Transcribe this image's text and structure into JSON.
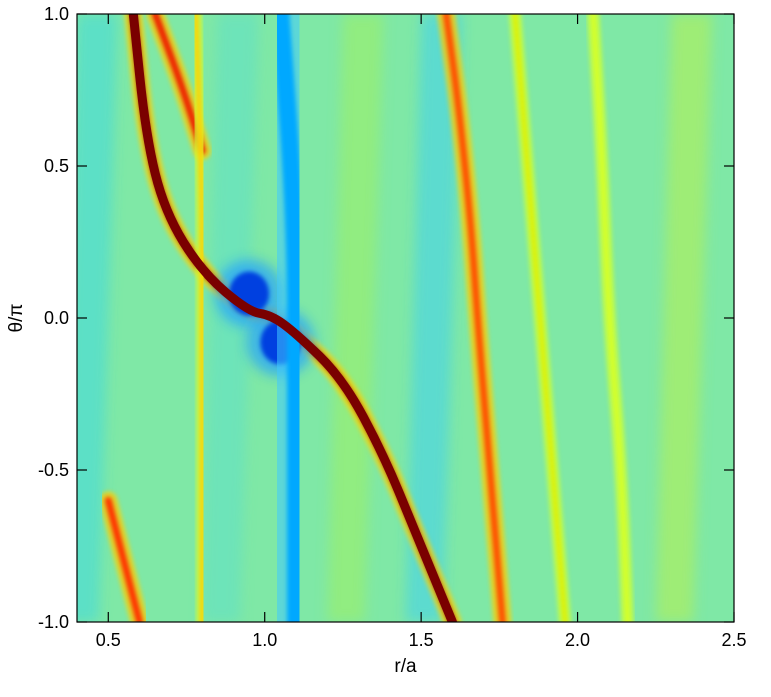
{
  "chart_data": {
    "type": "heatmap",
    "title": "",
    "xlabel": "r/a",
    "ylabel": "θ/π",
    "xlim": [
      0.4,
      2.5
    ],
    "ylim": [
      -1.0,
      1.0
    ],
    "x_ticks": [
      {
        "value": 0.5,
        "label": "0.5"
      },
      {
        "value": 1.0,
        "label": "1.0"
      },
      {
        "value": 1.5,
        "label": "1.5"
      },
      {
        "value": 2.0,
        "label": "2.0"
      },
      {
        "value": 2.5,
        "label": "2.5"
      }
    ],
    "y_ticks": [
      {
        "value": -1.0,
        "label": "-1.0"
      },
      {
        "value": -0.5,
        "label": "-0.5"
      },
      {
        "value": 0.0,
        "label": "0.0"
      },
      {
        "value": 0.5,
        "label": "0.5"
      },
      {
        "value": 1.0,
        "label": "1.0"
      }
    ],
    "colormap": [
      "#00008f",
      "#0000ff",
      "#0080ff",
      "#00ffff",
      "#80ff80",
      "#ffff00",
      "#ff8000",
      "#ff0000",
      "#800000"
    ],
    "background_color": "#7fe8a6",
    "grid": false,
    "legend": "none",
    "features": [
      {
        "name": "primary spiral wake",
        "level": "high",
        "color": "#8b0000",
        "path": [
          [
            0.58,
            1.0
          ],
          [
            0.62,
            0.6
          ],
          [
            0.68,
            0.35
          ],
          [
            0.8,
            0.15
          ],
          [
            0.95,
            0.02
          ],
          [
            1.02,
            0.01
          ],
          [
            1.1,
            -0.05
          ],
          [
            1.25,
            -0.2
          ],
          [
            1.38,
            -0.45
          ],
          [
            1.48,
            -0.7
          ],
          [
            1.6,
            -1.0
          ]
        ]
      },
      {
        "name": "upper outer arm",
        "level": "high",
        "color": "#ee2000",
        "path": [
          [
            0.65,
            1.0
          ],
          [
            0.74,
            0.75
          ],
          [
            0.8,
            0.55
          ]
        ]
      },
      {
        "name": "lower inner arm",
        "level": "high",
        "color": "#ff3000",
        "path": [
          [
            0.5,
            -0.6
          ],
          [
            0.55,
            -0.8
          ],
          [
            0.6,
            -1.0
          ]
        ]
      },
      {
        "name": "leading low-density lobe",
        "level": "low",
        "color": "#0040e0",
        "center": [
          0.95,
          0.08
        ]
      },
      {
        "name": "trailing low-density lobe",
        "level": "low",
        "color": "#0040e0",
        "center": [
          1.05,
          -0.08
        ]
      },
      {
        "name": "corotation gap",
        "level": "low",
        "color": "#00a8ff",
        "path": [
          [
            1.05,
            1.0
          ],
          [
            1.1,
            0.3
          ],
          [
            1.1,
            -0.3
          ],
          [
            1.1,
            -1.0
          ]
        ]
      },
      {
        "name": "outer spiral wave 1",
        "level": "high",
        "color": "#ff5000",
        "path": [
          [
            1.58,
            1.0
          ],
          [
            1.62,
            0.7
          ],
          [
            1.66,
            0.3
          ],
          [
            1.68,
            0.0
          ],
          [
            1.72,
            -0.5
          ],
          [
            1.76,
            -1.0
          ]
        ]
      },
      {
        "name": "outer spiral wave 2",
        "level": "mid-high",
        "color": "#e0f000",
        "path": [
          [
            1.8,
            1.0
          ],
          [
            1.84,
            0.5
          ],
          [
            1.88,
            0.0
          ],
          [
            1.92,
            -0.5
          ],
          [
            1.96,
            -1.0
          ]
        ]
      },
      {
        "name": "outer spiral wave 3",
        "level": "mid-high",
        "color": "#d8ff20",
        "path": [
          [
            2.05,
            1.0
          ],
          [
            2.08,
            0.5
          ],
          [
            2.1,
            0.0
          ],
          [
            2.14,
            -0.5
          ],
          [
            2.16,
            -1.0
          ]
        ]
      },
      {
        "name": "inner upper yellow band",
        "level": "mid-high",
        "color": "#ffd000",
        "path": [
          [
            0.78,
            1.0
          ],
          [
            0.8,
            0.4
          ],
          [
            0.8,
            0.0
          ],
          [
            0.8,
            -0.4
          ],
          [
            0.8,
            -1.0
          ]
        ]
      }
    ]
  }
}
